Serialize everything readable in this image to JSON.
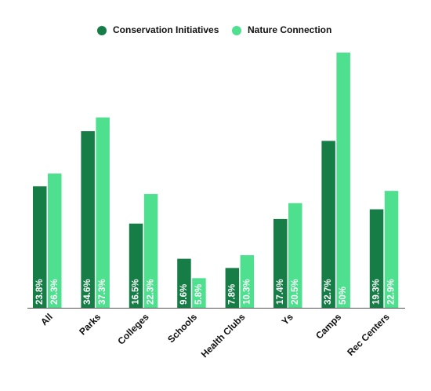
{
  "chart_data": {
    "type": "bar",
    "categories": [
      "All",
      "Parks",
      "Colleges",
      "Schools",
      "Health Clubs",
      "Ys",
      "Camps",
      "Rec Centers"
    ],
    "series": [
      {
        "name": "Conservation Initiatives",
        "color": "#177d47",
        "values": [
          23.8,
          34.6,
          16.5,
          9.6,
          7.8,
          17.4,
          32.7,
          19.3
        ],
        "value_labels": [
          "23.8%",
          "34.6%",
          "16.5%",
          "9.6%",
          "7.8%",
          "17.4%",
          "32.7%",
          "19.3%"
        ]
      },
      {
        "name": "Nature Connection",
        "color": "#4ee08f",
        "values": [
          26.3,
          37.3,
          22.3,
          5.8,
          10.3,
          20.5,
          50,
          22.9
        ],
        "value_labels": [
          "26.3%",
          "37.3%",
          "22.3%",
          "5.8%",
          "10.3%",
          "20.5%",
          "50%",
          "22.9%"
        ]
      }
    ]
  }
}
